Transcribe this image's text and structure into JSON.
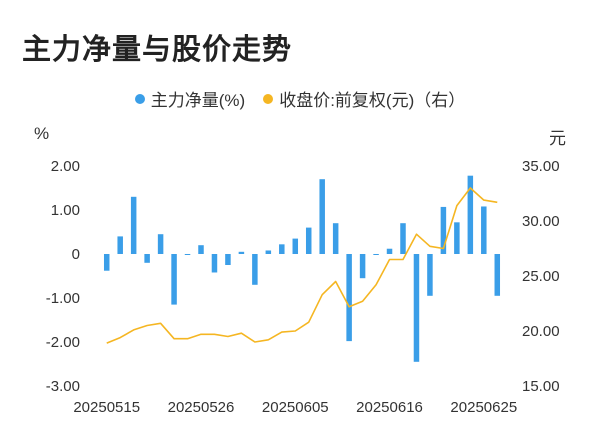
{
  "chart_data": {
    "type": "bar",
    "title": "主力净量与股价走势",
    "legend": [
      {
        "name": "主力净量(%)",
        "color": "#3a9ee8"
      },
      {
        "name": "收盘价:前复权(元)（右）",
        "color": "#f5b622"
      }
    ],
    "y_left_unit": "%",
    "y_right_unit": "元",
    "y_left_ticks": [
      "2.00",
      "1.00",
      "0",
      "-1.00",
      "-2.00",
      "-3.00"
    ],
    "y_right_ticks": [
      "35.00",
      "30.00",
      "25.00",
      "20.00",
      "15.00"
    ],
    "ylim_left": [
      -3,
      2
    ],
    "ylim_right": [
      15,
      35
    ],
    "x_tick_labels": [
      "20250515",
      "20250526",
      "20250605",
      "20250616",
      "20250625"
    ],
    "x_tick_indices": [
      0,
      7,
      14,
      21,
      28
    ],
    "series": [
      {
        "name": "主力净量(%)",
        "type": "bar",
        "values": [
          -0.38,
          0.4,
          1.3,
          -0.2,
          0.45,
          -1.15,
          0.0,
          0.2,
          -0.42,
          -0.25,
          0.05,
          -0.7,
          0.08,
          0.22,
          0.35,
          0.6,
          1.7,
          0.7,
          -1.98,
          -0.55,
          0.0,
          0.12,
          0.7,
          -2.45,
          -0.95,
          1.07,
          0.72,
          1.78,
          1.08,
          -0.95
        ]
      },
      {
        "name": "收盘价:前复权(元)（右）",
        "type": "line",
        "values": [
          18.9,
          19.4,
          20.1,
          20.5,
          20.7,
          19.3,
          19.3,
          19.7,
          19.7,
          19.5,
          19.8,
          19.0,
          19.2,
          19.9,
          20.0,
          20.8,
          23.3,
          24.5,
          22.2,
          22.7,
          24.2,
          26.5,
          26.5,
          28.8,
          27.7,
          27.5,
          31.4,
          33.0,
          31.9,
          31.7
        ]
      }
    ],
    "grid": false
  }
}
